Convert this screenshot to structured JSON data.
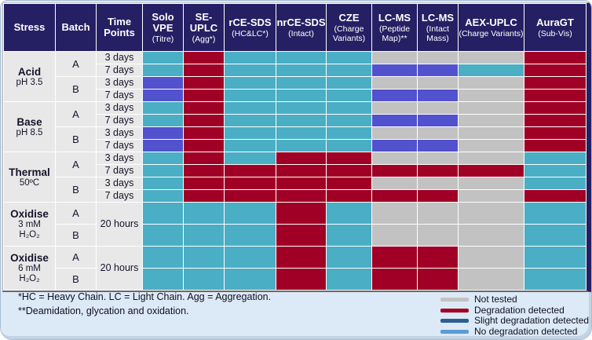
{
  "colors": {
    "header_bg": "#251f63",
    "cell_no_degradation": "#4aaec5",
    "cell_degradation": "#a10026",
    "cell_slight": "#5251ce",
    "cell_not_tested": "#c2c2c2"
  },
  "table": {
    "columns": [
      {
        "title": "Stress",
        "sub": ""
      },
      {
        "title": "Batch",
        "sub": ""
      },
      {
        "title": "Time Points",
        "sub": ""
      },
      {
        "title": "Solo VPE",
        "sub": "(Titre)"
      },
      {
        "title": "SE-UPLC",
        "sub": "(Agg*)"
      },
      {
        "title": "rCE-SDS",
        "sub": "(HC&LC*)"
      },
      {
        "title": "nrCE-SDS",
        "sub": "(Intact)"
      },
      {
        "title": "CZE",
        "sub": "(Charge Variants)"
      },
      {
        "title": "LC-MS",
        "sub": "(Peptide Map)**"
      },
      {
        "title": "LC-MS",
        "sub": "(Intact Mass)"
      },
      {
        "title": "AEX-UPLC",
        "sub": "(Charge Variants)"
      },
      {
        "title": "AuraGT",
        "sub": "(Sub-Vis)"
      }
    ],
    "rows": [
      {
        "size": "s",
        "stress": {
          "text": "Acid",
          "sub": [
            "pH 3.5"
          ],
          "span": 4
        },
        "batch": {
          "text": "A",
          "span": 2
        },
        "time": {
          "text": "3 days"
        },
        "cells": [
          "ok",
          "deg",
          "ok",
          "ok",
          "ok",
          "nt",
          "nt",
          "nt",
          "deg"
        ]
      },
      {
        "size": "s",
        "time": {
          "text": "7 days"
        },
        "cells": [
          "ok",
          "deg",
          "ok",
          "ok",
          "ok",
          "slight",
          "slight",
          "ok",
          "deg"
        ]
      },
      {
        "size": "s",
        "batch": {
          "text": "B",
          "span": 2
        },
        "time": {
          "text": "3 days"
        },
        "cells": [
          "slight",
          "deg",
          "ok",
          "ok",
          "ok",
          "nt",
          "nt",
          "nt",
          "deg"
        ]
      },
      {
        "size": "s",
        "time": {
          "text": "7 days"
        },
        "cells": [
          "slight",
          "deg",
          "ok",
          "ok",
          "ok",
          "slight",
          "slight",
          "nt",
          "deg"
        ]
      },
      {
        "size": "s",
        "stress": {
          "text": "Base",
          "sub": [
            "pH 8.5"
          ],
          "span": 4
        },
        "batch": {
          "text": "A",
          "span": 2
        },
        "time": {
          "text": "3 days"
        },
        "cells": [
          "ok",
          "deg",
          "ok",
          "ok",
          "ok",
          "nt",
          "nt",
          "nt",
          "deg"
        ]
      },
      {
        "size": "s",
        "time": {
          "text": "7 days"
        },
        "cells": [
          "ok",
          "deg",
          "ok",
          "ok",
          "ok",
          "slight",
          "slight",
          "nt",
          "deg"
        ]
      },
      {
        "size": "s",
        "batch": {
          "text": "B",
          "span": 2
        },
        "time": {
          "text": "3 days"
        },
        "cells": [
          "slight",
          "deg",
          "ok",
          "ok",
          "ok",
          "nt",
          "nt",
          "nt",
          "deg"
        ]
      },
      {
        "size": "s",
        "time": {
          "text": "7 days"
        },
        "cells": [
          "slight",
          "deg",
          "ok",
          "ok",
          "ok",
          "slight",
          "slight",
          "nt",
          "deg"
        ]
      },
      {
        "size": "s",
        "stress": {
          "text": "Thermal",
          "sub": [
            "50ºC"
          ],
          "span": 4
        },
        "batch": {
          "text": "A",
          "span": 2
        },
        "time": {
          "text": "3 days"
        },
        "cells": [
          "ok",
          "deg",
          "ok",
          "deg",
          "deg",
          "nt",
          "nt",
          "nt",
          "ok"
        ]
      },
      {
        "size": "s",
        "time": {
          "text": "7 days"
        },
        "cells": [
          "ok",
          "deg",
          "deg",
          "deg",
          "deg",
          "deg",
          "deg",
          "deg",
          "ok"
        ]
      },
      {
        "size": "s",
        "batch": {
          "text": "B",
          "span": 2
        },
        "time": {
          "text": "3 days"
        },
        "cells": [
          "ok",
          "deg",
          "deg",
          "deg",
          "deg",
          "nt",
          "nt",
          "nt",
          "ok"
        ]
      },
      {
        "size": "s",
        "time": {
          "text": "7 days"
        },
        "cells": [
          "ok",
          "deg",
          "deg",
          "deg",
          "deg",
          "deg",
          "deg",
          "nt",
          "deg"
        ]
      },
      {
        "size": "l",
        "stress": {
          "text": "Oxidise",
          "sub": [
            "3 mM",
            "H₂O₂"
          ],
          "span": 2
        },
        "batch": {
          "text": "A",
          "span": 1
        },
        "time": {
          "text": "20 hours",
          "span": 2
        },
        "cells": [
          "ok",
          "ok",
          "ok",
          "deg",
          "ok",
          "nt",
          "nt",
          "nt",
          "ok"
        ]
      },
      {
        "size": "l",
        "batch": {
          "text": "B",
          "span": 1
        },
        "cells": [
          "ok",
          "ok",
          "ok",
          "deg",
          "ok",
          "nt",
          "nt",
          "nt",
          "ok"
        ]
      },
      {
        "size": "l",
        "stress": {
          "text": "Oxidise",
          "sub": [
            "6 mM",
            "H₂O₂"
          ],
          "span": 2
        },
        "batch": {
          "text": "A",
          "span": 1
        },
        "time": {
          "text": "20 hours",
          "span": 2
        },
        "cells": [
          "ok",
          "ok",
          "ok",
          "deg",
          "ok",
          "deg",
          "deg",
          "nt",
          "ok"
        ]
      },
      {
        "size": "l",
        "batch": {
          "text": "B",
          "span": 1
        },
        "cells": [
          "ok",
          "ok",
          "ok",
          "deg",
          "ok",
          "deg",
          "deg",
          "nt",
          "ok"
        ]
      }
    ]
  },
  "footnotes": [
    "*HC = Heavy Chain. LC = Light Chain. Agg = Aggregation.",
    "**Deamidation, glycation and oxidation."
  ],
  "legend": [
    {
      "label": "Not tested",
      "color": "#c2c2c2"
    },
    {
      "label": "Degradation detected",
      "color": "#a50021"
    },
    {
      "label": "Slight degradation detected",
      "color": "#2d5e93"
    },
    {
      "label": "No degradation detected",
      "color": "#5b9bd5"
    }
  ]
}
